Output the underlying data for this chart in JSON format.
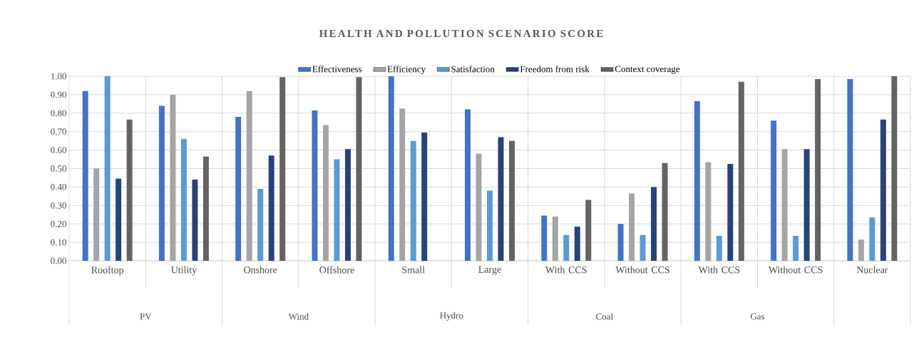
{
  "chart_data": {
    "type": "bar",
    "title": "HEALTH AND POLLUTION SCENARIO SCORE",
    "categories": [
      "Rooftop",
      "Utility",
      "Onshore",
      "Offshore",
      "Small",
      "Large",
      "With CCS",
      "Without CCS",
      "With CCS",
      "Without CCS",
      "Nuclear"
    ],
    "series": [
      {
        "name": "Effectiveness",
        "color": "#4472c4",
        "values": [
          0.92,
          0.84,
          0.78,
          0.815,
          1.0,
          0.82,
          0.245,
          0.2,
          0.865,
          0.76,
          0.985
        ]
      },
      {
        "name": "Efficiency",
        "color": "#a5a5a5",
        "values": [
          0.5,
          0.9,
          0.92,
          0.735,
          0.825,
          0.58,
          0.24,
          0.365,
          0.535,
          0.605,
          0.115
        ]
      },
      {
        "name": "Satisfaction",
        "color": "#5b9bd5",
        "values": [
          1.0,
          0.66,
          0.39,
          0.55,
          0.65,
          0.38,
          0.14,
          0.14,
          0.135,
          0.135,
          0.235
        ]
      },
      {
        "name": "Freedom from risk",
        "color": "#264478",
        "values": [
          0.445,
          0.44,
          0.57,
          0.605,
          0.695,
          0.67,
          0.185,
          0.4,
          0.525,
          0.605,
          0.765
        ]
      },
      {
        "name": "Context coverage",
        "color": "#636363",
        "values": [
          0.765,
          0.565,
          0.995,
          0.995,
          null,
          0.65,
          0.33,
          0.53,
          0.97,
          0.985,
          1.0
        ]
      }
    ],
    "annotations": [
      "PV",
      "Wind",
      "Hydro",
      "Coal",
      "Gas"
    ],
    "ylim": [
      0,
      1
    ],
    "yticks": [
      {
        "value": 0,
        "label": "0.00"
      },
      {
        "value": 0.1,
        "label": "0.10"
      },
      {
        "value": 0.2,
        "label": "0.20"
      },
      {
        "value": 0.3,
        "label": "0.30"
      },
      {
        "value": 0.4,
        "label": "0.40"
      },
      {
        "value": 0.5,
        "label": "0.50"
      },
      {
        "value": 0.6,
        "label": "0.60"
      },
      {
        "value": 0.7,
        "label": "0.70"
      },
      {
        "value": 0.8,
        "label": "0.80"
      },
      {
        "value": 0.9,
        "label": "0.90"
      },
      {
        "value": 1,
        "label": "1.00"
      }
    ],
    "grid": true,
    "legend": "top"
  }
}
